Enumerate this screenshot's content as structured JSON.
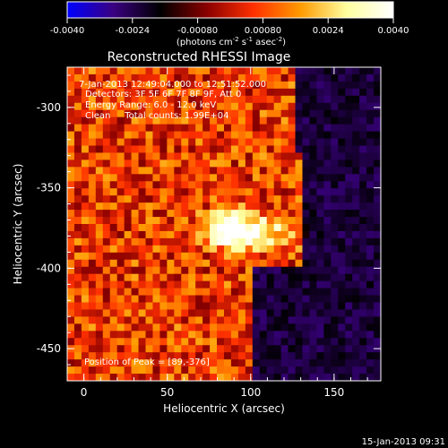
{
  "chart_data": {
    "type": "heatmap",
    "title": "Reconstructed RHESSI Image",
    "xlabel": "Heliocentric X (arcsec)",
    "ylabel": "Heliocentric Y (arcsec)",
    "xlim": [
      -10,
      178
    ],
    "ylim": [
      -470,
      -275
    ],
    "x_ticks": [
      0,
      50,
      100,
      150
    ],
    "y_ticks": [
      -300,
      -350,
      -400,
      -450
    ],
    "colorbar": {
      "range": [
        -0.004,
        0.004
      ],
      "ticks": [
        "-0.0040",
        "-0.0024",
        "-0.00080",
        "0.00080",
        "0.0024",
        "0.0040"
      ],
      "unit_text": "(photons cm",
      "unit_exp1": "-2",
      "unit_mid": " s",
      "unit_exp2": "-1",
      "unit_mid2": " asec",
      "unit_exp3": "-2",
      "unit_end": ")",
      "colors": [
        "#0000ff",
        "#3a0080",
        "#000000",
        "#8a0000",
        "#ff3000",
        "#ff9a00",
        "#ffffa0",
        "#ffffff"
      ]
    },
    "annotations": [
      "7-Jan-2013 12:49:04.000 to 12:51:52.000",
      "Detectors: 3F 5F 6F 7F 8F 9F, Att 0",
      "Energy Range: 6.0 - 12.0 keV",
      "Clean     Total counts: 1.99E+04"
    ],
    "peak_label": "Position of Peak = [89,-376]",
    "peak": {
      "x": 89,
      "y": -376
    },
    "footer_date": "15-Jan-2013 09:31"
  }
}
